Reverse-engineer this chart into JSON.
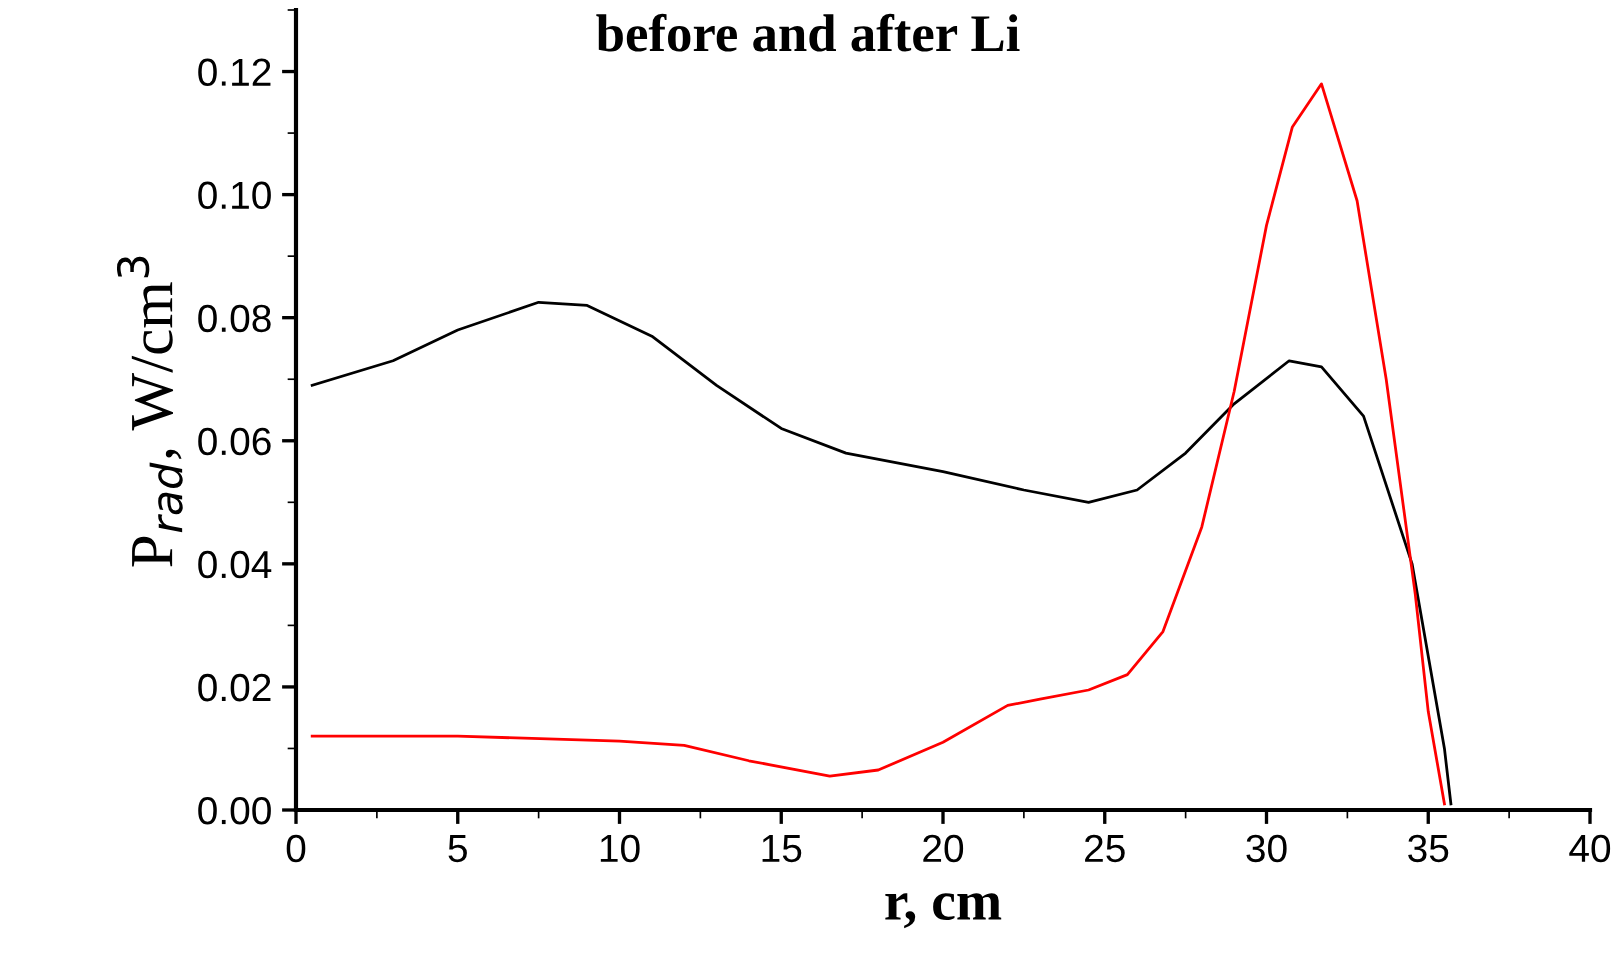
{
  "chart_data": {
    "type": "line",
    "title": "before and after Li",
    "xlabel": "r, cm",
    "ylabel": "P$_{rad}$, W/cm$^{3}$",
    "xlim": [
      0,
      40
    ],
    "xticks": [
      0,
      5,
      10,
      15,
      20,
      25,
      30,
      35,
      40
    ],
    "ylim": [
      0,
      0.13
    ],
    "yticks": [
      {
        "value": 0,
        "label": "0.00"
      },
      0.02,
      0.04,
      0.06,
      0.08,
      {
        "value": 0.1,
        "label": "0.10"
      },
      0.12
    ],
    "grid": false,
    "legend": false,
    "marker": "none",
    "line_style": "solid",
    "series": [
      {
        "color": "#000000",
        "x": [
          0.5,
          3,
          5,
          7.5,
          9,
          11,
          13,
          15,
          17,
          20,
          22.5,
          24.5,
          26,
          27.5,
          29,
          30.7,
          31.7,
          33,
          34.5,
          35.5,
          35.7
        ],
        "values": [
          0.069,
          0.073,
          0.078,
          0.0825,
          0.082,
          0.077,
          0.069,
          0.062,
          0.058,
          0.055,
          0.052,
          0.05,
          0.052,
          0.058,
          0.066,
          0.073,
          0.072,
          0.064,
          0.04,
          0.01,
          0.001
        ]
      },
      {
        "color": "#ff0000",
        "x": [
          0.5,
          5,
          10,
          12,
          14,
          16.5,
          18,
          20,
          22,
          23,
          24.5,
          25.7,
          26.8,
          28,
          29,
          30,
          30.8,
          31.7,
          32.8,
          33.7,
          34.6,
          35,
          35.5
        ],
        "values": [
          0.012,
          0.012,
          0.0112,
          0.0105,
          0.008,
          0.0055,
          0.0065,
          0.011,
          0.017,
          0.018,
          0.0195,
          0.022,
          0.029,
          0.046,
          0.068,
          0.095,
          0.111,
          0.118,
          0.099,
          0.07,
          0.035,
          0.016,
          0.001
        ]
      }
    ]
  }
}
